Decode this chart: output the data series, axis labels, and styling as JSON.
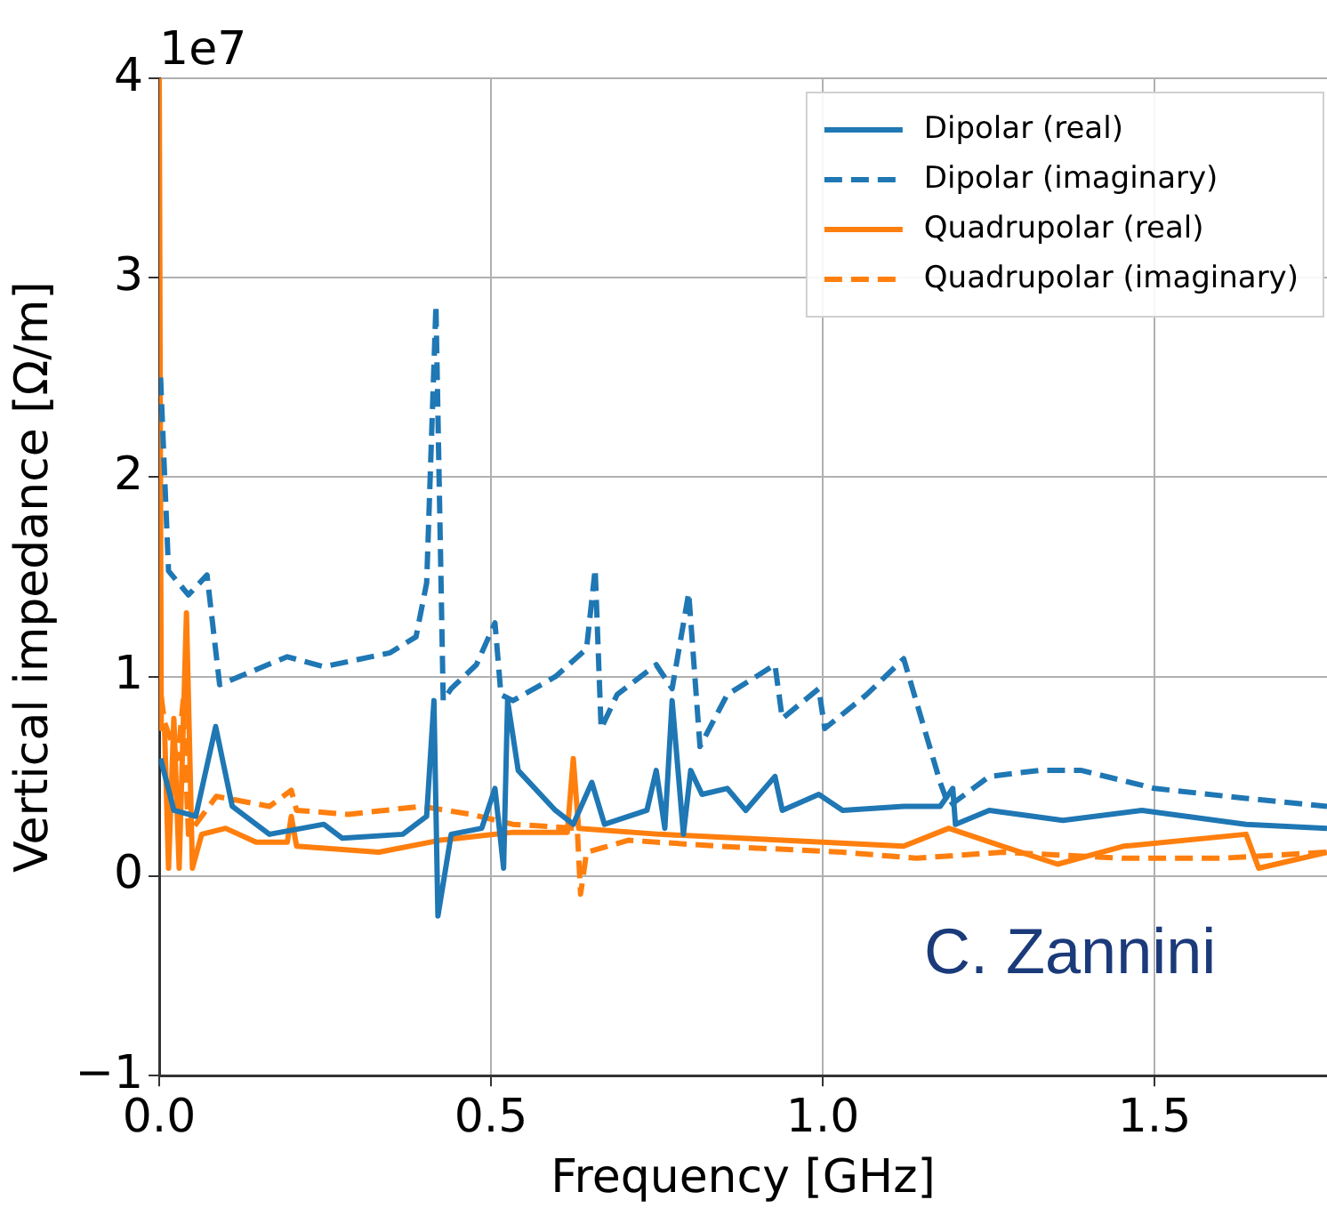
{
  "chart_data": {
    "type": "line",
    "xlabel": "Frequency [GHz]",
    "ylabel": "Vertical impedance [Ω/m]",
    "xlim": [
      0,
      1.76
    ],
    "xticks": [
      {
        "value": 0,
        "label": "0.0"
      },
      0.5,
      {
        "value": 1,
        "label": "1.0"
      },
      1.5
    ],
    "ylim": [
      -1,
      4
    ],
    "yticks": [
      -1,
      0,
      1,
      2,
      3,
      4
    ],
    "grid": true,
    "legend": "top right",
    "marker": "none",
    "annotations": [
      "1e7",
      {
        "text": "C. Zannini"
      }
    ],
    "series": [
      {
        "name": "Dipolar (real)",
        "color": "#1f77b4",
        "line_style": "solid",
        "x": [
          0.002,
          0.022,
          0.055,
          0.085,
          0.11,
          0.166,
          0.248,
          0.276,
          0.367,
          0.403,
          0.414,
          0.42,
          0.44,
          0.486,
          0.506,
          0.519,
          0.525,
          0.541,
          0.597,
          0.624,
          0.652,
          0.671,
          0.735,
          0.749,
          0.762,
          0.773,
          0.79,
          0.801,
          0.818,
          0.856,
          0.884,
          0.928,
          0.939,
          0.994,
          1.03,
          1.122,
          1.177,
          1.196,
          1.2,
          1.251,
          1.362,
          1.481,
          1.638,
          1.76
        ],
        "values": [
          0.59,
          0.33,
          0.3,
          0.75,
          0.35,
          0.21,
          0.26,
          0.19,
          0.21,
          0.3,
          0.88,
          -0.2,
          0.21,
          0.24,
          0.44,
          0.04,
          0.88,
          0.53,
          0.33,
          0.26,
          0.47,
          0.26,
          0.33,
          0.53,
          0.24,
          0.88,
          0.21,
          0.53,
          0.41,
          0.44,
          0.33,
          0.5,
          0.33,
          0.41,
          0.33,
          0.35,
          0.35,
          0.44,
          0.26,
          0.33,
          0.28,
          0.33,
          0.26,
          0.24
        ]
      },
      {
        "name": "Dipolar (imaginary)",
        "color": "#1f77b4",
        "line_style": "dashed",
        "x": [
          0.002,
          0.014,
          0.044,
          0.072,
          0.091,
          0.193,
          0.248,
          0.348,
          0.387,
          0.403,
          0.417,
          0.428,
          0.44,
          0.478,
          0.506,
          0.515,
          0.533,
          0.597,
          0.644,
          0.657,
          0.666,
          0.69,
          0.749,
          0.773,
          0.798,
          0.815,
          0.856,
          0.928,
          0.939,
          0.994,
          1.003,
          1.066,
          1.122,
          1.177,
          1.19,
          1.251,
          1.326,
          1.39,
          1.5,
          1.638,
          1.76
        ],
        "values": [
          2.5,
          1.53,
          1.41,
          1.51,
          0.96,
          1.1,
          1.05,
          1.12,
          1.2,
          1.47,
          2.86,
          0.88,
          0.94,
          1.06,
          1.27,
          0.91,
          0.88,
          1.0,
          1.14,
          1.54,
          0.74,
          0.91,
          1.06,
          0.94,
          1.42,
          0.65,
          0.91,
          1.06,
          0.79,
          0.94,
          0.74,
          0.91,
          1.09,
          0.47,
          0.35,
          0.5,
          0.53,
          0.53,
          0.44,
          0.39,
          0.35
        ]
      },
      {
        "name": "Quadrupolar (real)",
        "color": "#ff7f0e",
        "line_style": "solid",
        "x": [
          0.0,
          0.003,
          0.008,
          0.014,
          0.022,
          0.03,
          0.041,
          0.05,
          0.064,
          0.1,
          0.146,
          0.193,
          0.199,
          0.207,
          0.331,
          0.423,
          0.533,
          0.615,
          0.624,
          0.632,
          0.754,
          0.939,
          1.122,
          1.19,
          1.271,
          1.354,
          1.453,
          1.638,
          1.657,
          1.76
        ],
        "values": [
          4,
          0.74,
          0.74,
          0.04,
          0.79,
          0.04,
          1.32,
          0.04,
          0.21,
          0.24,
          0.17,
          0.17,
          0.3,
          0.15,
          0.12,
          0.18,
          0.22,
          0.22,
          0.59,
          0.24,
          0.21,
          0.18,
          0.15,
          0.24,
          0.15,
          0.06,
          0.15,
          0.21,
          0.04,
          0.12
        ]
      },
      {
        "name": "Quadrupolar (imaginary)",
        "color": "#ff7f0e",
        "line_style": "dashed",
        "x": [
          0.003,
          0.008,
          0.028,
          0.036,
          0.044,
          0.086,
          0.166,
          0.199,
          0.207,
          0.285,
          0.395,
          0.47,
          0.533,
          0.63,
          0.635,
          0.644,
          0.707,
          0.845,
          1.03,
          1.141,
          1.271,
          1.453,
          1.602,
          1.76
        ],
        "values": [
          0.9,
          0.77,
          0.59,
          0.88,
          0.21,
          0.4,
          0.35,
          0.43,
          0.33,
          0.31,
          0.35,
          0.31,
          0.26,
          0.24,
          -0.09,
          0.12,
          0.18,
          0.15,
          0.12,
          0.09,
          0.12,
          0.09,
          0.09,
          0.12
        ]
      }
    ]
  }
}
